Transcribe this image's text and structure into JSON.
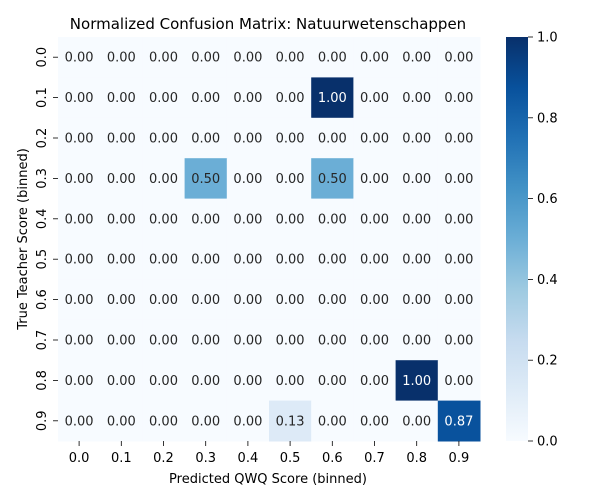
{
  "chart_data": {
    "type": "heatmap",
    "title": "Normalized Confusion Matrix: Natuurwetenschappen",
    "xlabel": "Predicted QWQ Score (binned)",
    "ylabel": "True Teacher Score (binned)",
    "x_categories": [
      "0.0",
      "0.1",
      "0.2",
      "0.3",
      "0.4",
      "0.5",
      "0.6",
      "0.7",
      "0.8",
      "0.9"
    ],
    "y_categories": [
      "0.0",
      "0.1",
      "0.2",
      "0.3",
      "0.4",
      "0.5",
      "0.6",
      "0.7",
      "0.8",
      "0.9"
    ],
    "values": [
      [
        0,
        0,
        0,
        0,
        0,
        0,
        0,
        0,
        0,
        0
      ],
      [
        0,
        0,
        0,
        0,
        0,
        0,
        1.0,
        0,
        0,
        0
      ],
      [
        0,
        0,
        0,
        0,
        0,
        0,
        0,
        0,
        0,
        0
      ],
      [
        0,
        0,
        0,
        0.5,
        0,
        0,
        0.5,
        0,
        0,
        0
      ],
      [
        0,
        0,
        0,
        0,
        0,
        0,
        0,
        0,
        0,
        0
      ],
      [
        0,
        0,
        0,
        0,
        0,
        0,
        0,
        0,
        0,
        0
      ],
      [
        0,
        0,
        0,
        0,
        0,
        0,
        0,
        0,
        0,
        0
      ],
      [
        0,
        0,
        0,
        0,
        0,
        0,
        0,
        0,
        0,
        0
      ],
      [
        0,
        0,
        0,
        0,
        0,
        0,
        0,
        0,
        1.0,
        0
      ],
      [
        0,
        0,
        0,
        0,
        0,
        0.13,
        0,
        0,
        0,
        0.87
      ]
    ],
    "colorscale": "Blues",
    "vmin": 0,
    "vmax": 1,
    "colorbar_ticks": [
      "0.0",
      "0.2",
      "0.4",
      "0.6",
      "0.8",
      "1.0"
    ],
    "colorbar_tick_values": [
      0,
      0.2,
      0.4,
      0.6,
      0.8,
      1.0
    ],
    "cell_label_decimals": 2
  }
}
